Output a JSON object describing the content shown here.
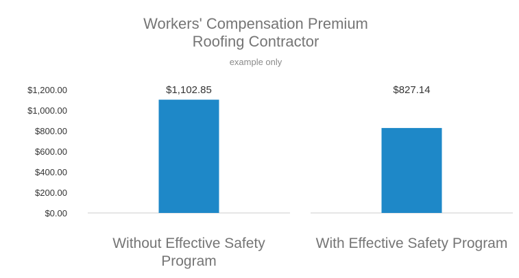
{
  "chart_data": {
    "type": "bar",
    "title_lines": [
      "Workers' Compensation Premium",
      "Roofing Contractor"
    ],
    "subtitle": "example only",
    "categories": [
      [
        "Without Effective Safety",
        "Program"
      ],
      [
        "With Effective Safety Program"
      ]
    ],
    "values": [
      1102.85,
      827.14
    ],
    "data_labels": [
      "$1,102.85",
      "$827.14"
    ],
    "yticks": [
      0,
      200,
      400,
      600,
      800,
      1000,
      1200
    ],
    "ytick_labels": [
      "$0.00",
      "$200.00",
      "$400.00",
      "$600.00",
      "$800.00",
      "$1,000.00",
      "$1,200.00"
    ],
    "ylim": [
      0,
      1200
    ],
    "grid": false,
    "bar_color": "#1e88c8"
  }
}
